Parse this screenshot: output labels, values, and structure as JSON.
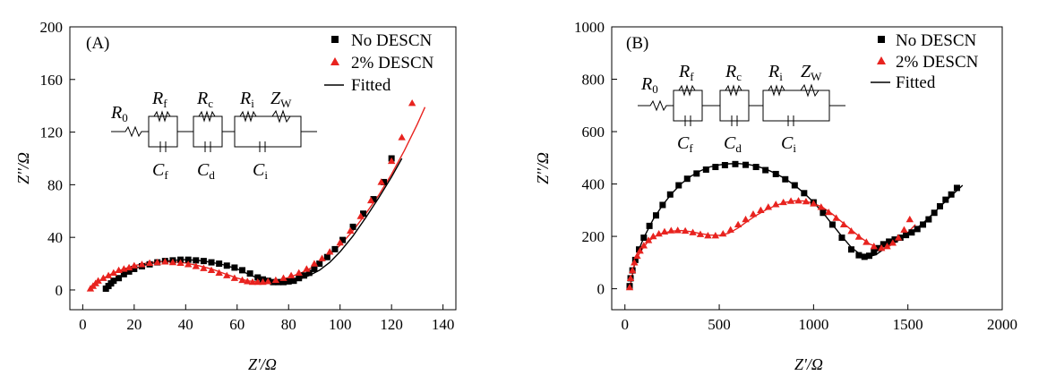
{
  "chart_data": [
    {
      "type": "scatter",
      "panel_label": "(A)",
      "xlabel": "Z'/Ω",
      "ylabel": "Z''/Ω",
      "xlim": [
        -5,
        145
      ],
      "ylim": [
        -15,
        200
      ],
      "xticks": [
        0,
        20,
        40,
        60,
        80,
        100,
        120,
        140
      ],
      "yticks": [
        0,
        40,
        80,
        120,
        160,
        200
      ],
      "x_tick_labels": [
        "0",
        "20",
        "40",
        "60",
        "80",
        "100",
        "120",
        "140"
      ],
      "y_tick_labels": [
        "0",
        "40",
        "80",
        "120",
        "160",
        "200"
      ],
      "legend": [
        "No DESCN",
        "2% DESCN",
        "Fitted"
      ],
      "circuit": {
        "r0": [
          "R",
          "0"
        ],
        "rf": [
          "R",
          "f"
        ],
        "rc": [
          "R",
          "c"
        ],
        "ri": [
          "R",
          "i"
        ],
        "zw": [
          "Z",
          "W"
        ],
        "cf": [
          "C",
          "f"
        ],
        "cd": [
          "C",
          "d"
        ],
        "ci": [
          "C",
          "i"
        ]
      },
      "series": [
        {
          "name": "No DESCN",
          "marker": "square",
          "color": "#000000",
          "x": [
            9,
            10,
            11,
            12,
            14,
            16,
            18,
            20,
            23,
            26,
            29,
            32,
            35,
            38,
            41,
            44,
            47,
            50,
            53,
            56,
            59,
            62,
            65,
            68,
            70,
            72,
            74,
            76,
            78,
            80,
            82,
            84,
            86,
            88,
            90,
            92,
            95,
            98,
            101,
            105,
            109,
            113,
            117,
            120
          ],
          "y": [
            1,
            3,
            5,
            7,
            9,
            12,
            14,
            16,
            18,
            19.5,
            21,
            22,
            22.5,
            23,
            23,
            22.5,
            22,
            21,
            20,
            18.5,
            17,
            15,
            12.5,
            9.5,
            8,
            7,
            6,
            6,
            6,
            6.5,
            7,
            9,
            11,
            13,
            16,
            20,
            25,
            31,
            38,
            48,
            58,
            69,
            82,
            100
          ]
        },
        {
          "name": "2% DESCN",
          "marker": "triangle",
          "color": "#e8231f",
          "x": [
            3,
            4,
            5,
            6,
            8,
            10,
            12,
            14,
            16,
            18,
            20,
            23,
            26,
            29,
            32,
            35,
            38,
            41,
            44,
            47,
            50,
            53,
            56,
            59,
            62,
            64,
            66,
            68,
            70,
            72,
            75,
            78,
            81,
            84,
            87,
            90,
            93,
            96,
            100,
            104,
            108,
            112,
            116,
            120,
            124,
            128
          ],
          "y": [
            1,
            3,
            5,
            7,
            9,
            11,
            13,
            15,
            16,
            17,
            18.5,
            19.5,
            20.5,
            21,
            21.5,
            21,
            20.5,
            19.5,
            18,
            16.5,
            15,
            13,
            11,
            9,
            7.5,
            6.5,
            6,
            6,
            6,
            6.5,
            7.5,
            9,
            11,
            13,
            16,
            20,
            24,
            29,
            36,
            45,
            56,
            68,
            82,
            98,
            116,
            142
          ]
        },
        {
          "name": "Fitted (No DESCN)",
          "marker": "line",
          "color": "#000000",
          "x": [
            9,
            12,
            16,
            20,
            25,
            30,
            35,
            40,
            45,
            50,
            55,
            60,
            65,
            68,
            72,
            76,
            80,
            84,
            88,
            92,
            96,
            100,
            105,
            110,
            115,
            120,
            124
          ],
          "y": [
            0,
            7,
            12,
            16,
            19.5,
            21.5,
            22.5,
            23,
            22.5,
            21,
            19,
            16,
            11.5,
            9,
            7,
            6.5,
            6.8,
            8,
            11,
            15,
            21,
            29,
            41,
            55,
            70,
            86,
            100
          ]
        },
        {
          "name": "Fitted (2% DESCN)",
          "marker": "line",
          "color": "#e8231f",
          "x": [
            3,
            5,
            8,
            12,
            16,
            20,
            25,
            30,
            35,
            40,
            45,
            50,
            55,
            60,
            64,
            68,
            72,
            76,
            80,
            85,
            90,
            95,
            100,
            105,
            110,
            115,
            120,
            125,
            130,
            133
          ],
          "y": [
            0,
            5,
            9,
            13,
            16,
            18.5,
            20.5,
            21.5,
            21.5,
            20.5,
            18.5,
            16,
            12.5,
            9,
            7,
            6,
            6.2,
            7.5,
            9.5,
            13,
            18,
            25,
            34,
            45,
            58,
            72,
            88,
            106,
            126,
            139
          ]
        }
      ]
    },
    {
      "type": "scatter",
      "panel_label": "(B)",
      "xlabel": "Z'/Ω",
      "ylabel": "Z''/Ω",
      "xlim": [
        -70,
        2000
      ],
      "ylim": [
        -80,
        1000
      ],
      "xticks": [
        0,
        500,
        1000,
        1500,
        2000
      ],
      "yticks": [
        0,
        200,
        400,
        600,
        800,
        1000
      ],
      "x_tick_labels": [
        "0",
        "500",
        "1000",
        "1500",
        "2000"
      ],
      "y_tick_labels": [
        "0",
        "200",
        "400",
        "600",
        "800",
        "1000"
      ],
      "legend": [
        "No DESCN",
        "2% DESCN",
        "Fitted"
      ],
      "circuit": {
        "r0": [
          "R",
          "0"
        ],
        "rf": [
          "R",
          "f"
        ],
        "rc": [
          "R",
          "c"
        ],
        "ri": [
          "R",
          "i"
        ],
        "zw": [
          "Z",
          "W"
        ],
        "cf": [
          "C",
          "f"
        ],
        "cd": [
          "C",
          "d"
        ],
        "ci": [
          "C",
          "i"
        ]
      },
      "series": [
        {
          "name": "No DESCN",
          "marker": "square",
          "color": "#000000",
          "x": [
            25,
            30,
            40,
            55,
            75,
            100,
            130,
            165,
            200,
            240,
            285,
            330,
            380,
            430,
            480,
            530,
            585,
            640,
            695,
            745,
            800,
            850,
            900,
            950,
            1000,
            1050,
            1100,
            1150,
            1200,
            1240,
            1270,
            1295,
            1320,
            1345,
            1370,
            1400,
            1430,
            1460,
            1490,
            1520,
            1550,
            1580,
            1610,
            1640,
            1670,
            1700,
            1730,
            1760
          ],
          "y": [
            10,
            40,
            70,
            110,
            150,
            195,
            240,
            280,
            320,
            360,
            395,
            420,
            440,
            455,
            465,
            472,
            476,
            473,
            465,
            453,
            438,
            418,
            395,
            365,
            330,
            290,
            245,
            195,
            150,
            128,
            122,
            126,
            140,
            155,
            170,
            180,
            188,
            195,
            205,
            215,
            228,
            245,
            265,
            290,
            315,
            340,
            360,
            385
          ]
        },
        {
          "name": "2% DESCN",
          "marker": "triangle",
          "color": "#e8231f",
          "x": [
            25,
            30,
            40,
            50,
            65,
            80,
            100,
            125,
            150,
            180,
            210,
            245,
            280,
            320,
            360,
            400,
            440,
            480,
            520,
            560,
            600,
            640,
            680,
            720,
            760,
            800,
            840,
            880,
            920,
            960,
            1000,
            1040,
            1080,
            1120,
            1160,
            1200,
            1240,
            1280,
            1320,
            1360,
            1390,
            1420,
            1450,
            1480,
            1510
          ],
          "y": [
            5,
            40,
            70,
            100,
            125,
            145,
            165,
            185,
            200,
            210,
            218,
            222,
            223,
            221,
            215,
            208,
            203,
            203,
            210,
            225,
            245,
            265,
            285,
            300,
            312,
            322,
            330,
            335,
            336,
            333,
            325,
            312,
            292,
            270,
            245,
            220,
            198,
            178,
            162,
            155,
            162,
            175,
            195,
            225,
            265
          ]
        },
        {
          "name": "Fitted (No DESCN)",
          "marker": "line",
          "color": "#000000",
          "x": [
            25,
            60,
            100,
            150,
            200,
            250,
            300,
            350,
            400,
            450,
            500,
            550,
            600,
            650,
            700,
            750,
            800,
            850,
            900,
            950,
            1000,
            1050,
            1100,
            1150,
            1200,
            1250,
            1290,
            1330,
            1380,
            1430,
            1480,
            1530,
            1580,
            1630,
            1680,
            1730,
            1790
          ],
          "y": [
            0,
            125,
            195,
            265,
            320,
            365,
            402,
            430,
            450,
            465,
            473,
            477,
            478,
            475,
            468,
            456,
            440,
            420,
            395,
            365,
            330,
            290,
            245,
            200,
            158,
            130,
            122,
            130,
            155,
            180,
            200,
            222,
            250,
            285,
            320,
            355,
            395
          ]
        },
        {
          "name": "Fitted (2% DESCN)",
          "marker": "line",
          "color": "#e8231f",
          "x": [
            25,
            50,
            80,
            120,
            160,
            200,
            250,
            300,
            350,
            400,
            450,
            500,
            550,
            600,
            650,
            700,
            750,
            800,
            850,
            900,
            950,
            1000,
            1050,
            1100,
            1150,
            1200,
            1250,
            1300,
            1350,
            1400,
            1450,
            1500,
            1540
          ],
          "y": [
            0,
            95,
            140,
            178,
            200,
            212,
            220,
            222,
            218,
            211,
            205,
            204,
            212,
            232,
            258,
            282,
            302,
            318,
            330,
            336,
            335,
            326,
            310,
            285,
            255,
            225,
            195,
            170,
            158,
            162,
            185,
            215,
            245
          ]
        }
      ]
    }
  ]
}
